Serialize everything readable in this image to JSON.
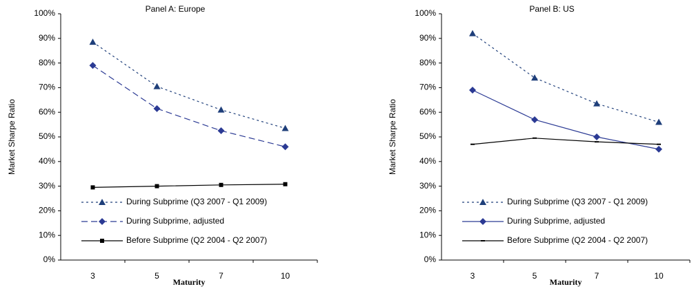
{
  "chart_data": [
    {
      "type": "line",
      "title": "Panel A: Europe",
      "x_label": "Maturity",
      "y_label": "Market Sharpe Ratio",
      "categories": [
        "3",
        "5",
        "7",
        "10"
      ],
      "ylim": [
        0,
        100
      ],
      "yticks": [
        {
          "value": 0,
          "label": "0%"
        },
        {
          "value": 10,
          "label": "10%"
        },
        {
          "value": 20,
          "label": "20%"
        },
        {
          "value": 30,
          "label": "30%"
        },
        {
          "value": 40,
          "label": "40%"
        },
        {
          "value": 50,
          "label": "50%"
        },
        {
          "value": 60,
          "label": "60%"
        },
        {
          "value": 70,
          "label": "70%"
        },
        {
          "value": 80,
          "label": "80%"
        },
        {
          "value": 90,
          "label": "90%"
        },
        {
          "value": 100,
          "label": "100%"
        }
      ],
      "legend": "lower left",
      "series": [
        {
          "name": "During Subprime (Q3 2007 - Q1 2009)",
          "color": "#1f3f7a",
          "dash": "dotted",
          "marker": "triangle",
          "values": [
            88.5,
            70.5,
            61,
            53.5
          ]
        },
        {
          "name": "During Subprime, adjusted",
          "color": "#2b3a94",
          "dash": "dashed",
          "marker": "diamond",
          "values": [
            79,
            61.5,
            52.5,
            46
          ]
        },
        {
          "name": "Before Subprime (Q2 2004 - Q2 2007)",
          "color": "#000000",
          "dash": "solid",
          "marker": "square",
          "values": [
            29.5,
            30,
            30.5,
            30.8
          ]
        }
      ]
    },
    {
      "type": "line",
      "title": "Panel B: US",
      "x_label": "Maturity",
      "y_label": "Market Sharpe Ratio",
      "categories": [
        "3",
        "5",
        "7",
        "10"
      ],
      "ylim": [
        0,
        100
      ],
      "yticks": [
        {
          "value": 0,
          "label": "0%"
        },
        {
          "value": 10,
          "label": "10%"
        },
        {
          "value": 20,
          "label": "20%"
        },
        {
          "value": 30,
          "label": "30%"
        },
        {
          "value": 40,
          "label": "40%"
        },
        {
          "value": 50,
          "label": "50%"
        },
        {
          "value": 60,
          "label": "60%"
        },
        {
          "value": 70,
          "label": "70%"
        },
        {
          "value": 80,
          "label": "80%"
        },
        {
          "value": 90,
          "label": "90%"
        },
        {
          "value": 100,
          "label": "100%"
        }
      ],
      "legend": "lower left",
      "series": [
        {
          "name": "During Subprime (Q3 2007 - Q1 2009)",
          "color": "#1f3f7a",
          "dash": "dotted",
          "marker": "triangle",
          "values": [
            92,
            74,
            63.5,
            56
          ]
        },
        {
          "name": "During Subprime, adjusted",
          "color": "#2b3a94",
          "dash": "solid",
          "marker": "diamond",
          "values": [
            69,
            57,
            50,
            45
          ]
        },
        {
          "name": "Before Subprime (Q2 2004 - Q2 2007)",
          "color": "#000000",
          "dash": "solid",
          "marker": "dash",
          "values": [
            47,
            49.5,
            48,
            47
          ]
        }
      ]
    }
  ]
}
